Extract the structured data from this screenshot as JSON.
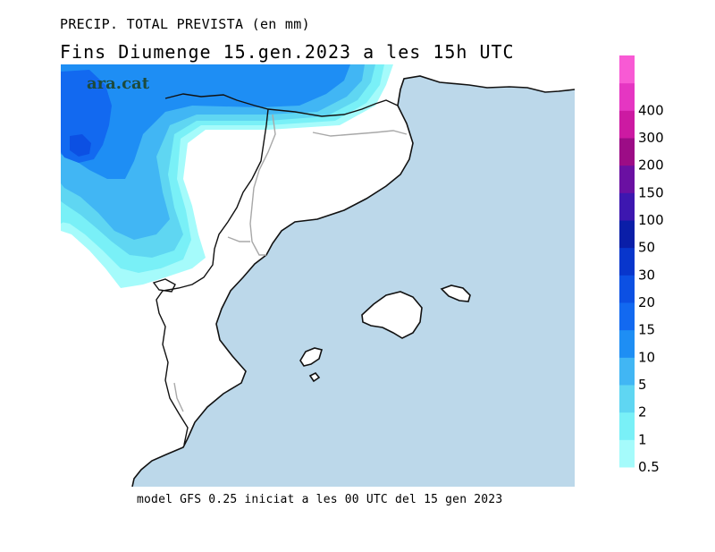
{
  "header": {
    "line1": "PRECIP. TOTAL PREVISTA (en mm)",
    "line2": "Fins Diumenge 15.gen.2023 a les 15h UTC"
  },
  "footer": {
    "model_info": "model GFS 0.25 iniciat a les 00 UTC del 15 gen 2023"
  },
  "watermark": "ara.cat",
  "colors": {
    "sea": "#bcd8ea",
    "land": "#ffffff",
    "coast": "#111111",
    "border": "#a8a8a8"
  },
  "legend": [
    {
      "label": "0.5",
      "color": "#a5fbfb"
    },
    {
      "label": "1",
      "color": "#79f0f7"
    },
    {
      "label": "2",
      "color": "#5fd6f2"
    },
    {
      "label": "5",
      "color": "#41b6f4"
    },
    {
      "label": "10",
      "color": "#1e8ef4"
    },
    {
      "label": "15",
      "color": "#1269f0"
    },
    {
      "label": "20",
      "color": "#0c50e3"
    },
    {
      "label": "30",
      "color": "#0836cc"
    },
    {
      "label": "50",
      "color": "#0a1ea8"
    },
    {
      "label": "100",
      "color": "#3d17b0"
    },
    {
      "label": "150",
      "color": "#6a10a2"
    },
    {
      "label": "200",
      "color": "#9c0c86"
    },
    {
      "label": "300",
      "color": "#cc1aa2"
    },
    {
      "label": "400",
      "color": "#e536c2"
    },
    {
      "label": "",
      "color": "#f85ad4"
    }
  ]
}
